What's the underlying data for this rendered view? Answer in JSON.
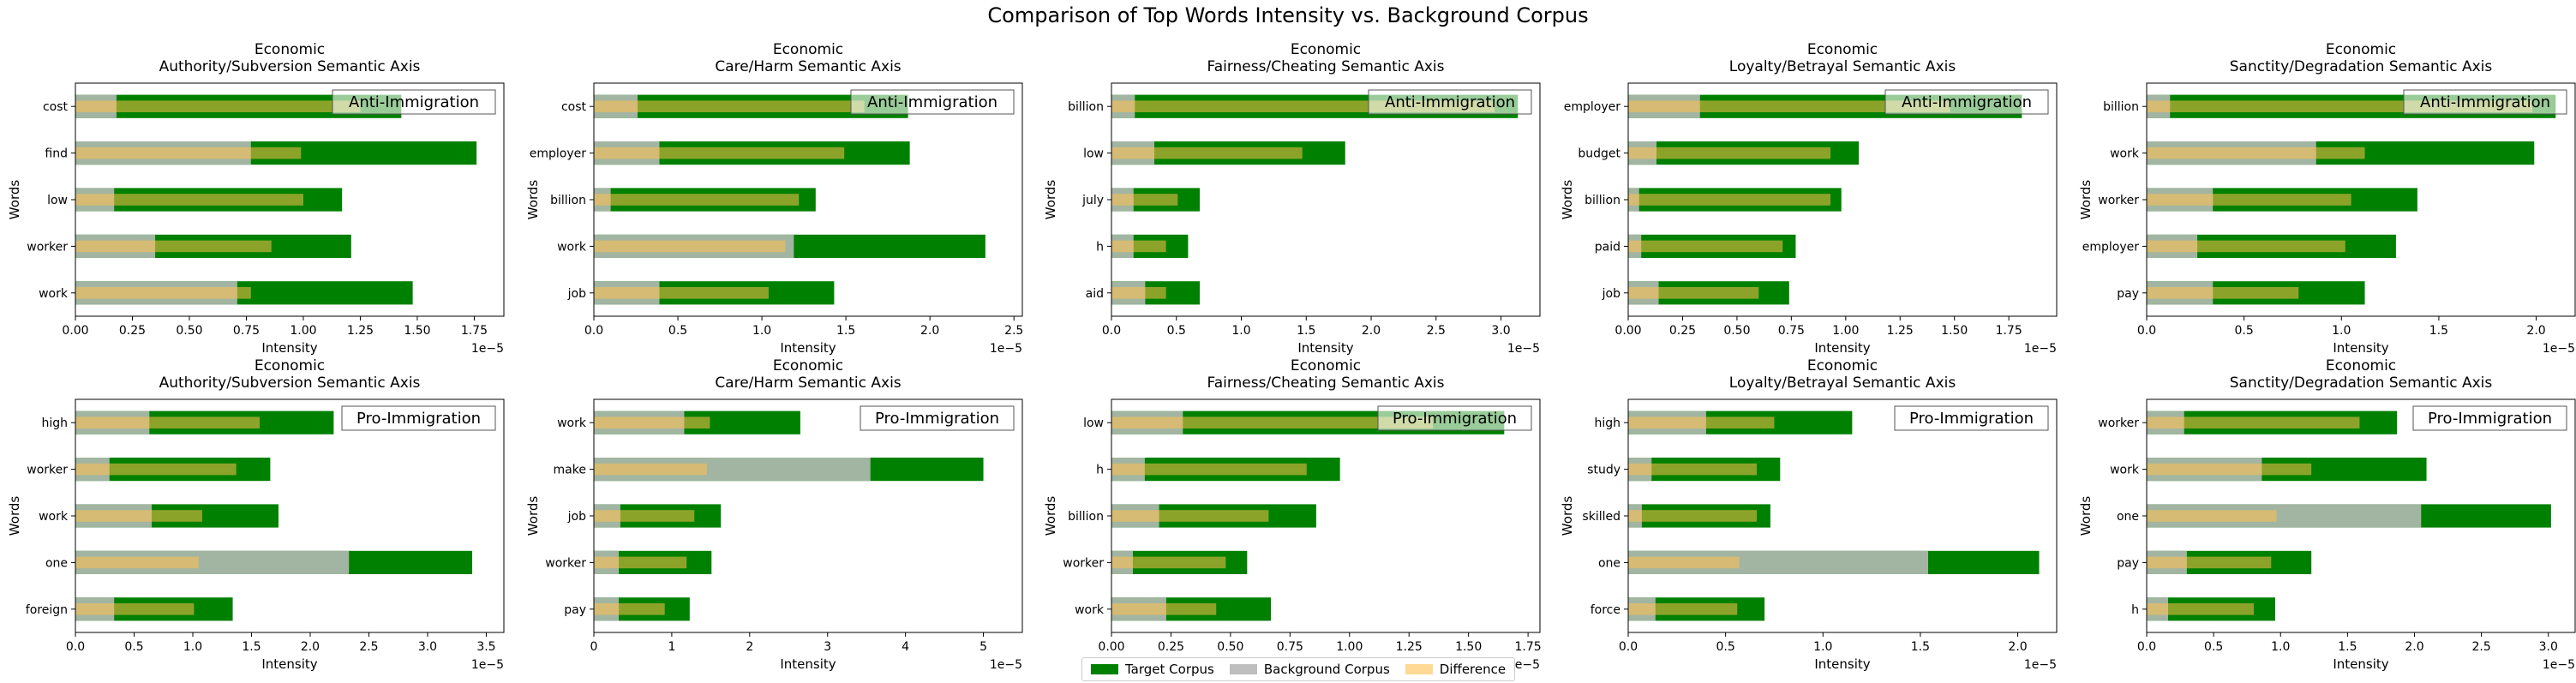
{
  "title": "Comparison of Top Words Intensity vs. Background Corpus",
  "colors": {
    "target": "#008000",
    "background": "#bebebe",
    "difference": "#ffc04d"
  },
  "legend": {
    "target": "Target Corpus",
    "background": "Background Corpus",
    "difference": "Difference"
  },
  "chart_data": [
    {
      "type": "bar",
      "orientation": "horizontal",
      "title": "Economic\nAuthority/Subversion Semantic Axis",
      "xlabel": "Intensity",
      "ylabel": "Words",
      "annotation": "Anti-Immigration",
      "multiplier": "1e−5",
      "xlim": [
        0,
        1.88
      ],
      "xticks": [
        0.0,
        0.25,
        0.5,
        0.75,
        1.0,
        1.25,
        1.5,
        1.75
      ],
      "categories": [
        "cost",
        "find",
        "low",
        "worker",
        "work"
      ],
      "series": [
        {
          "name": "Target Corpus",
          "values": [
            1.43,
            1.76,
            1.17,
            1.21,
            1.48
          ]
        },
        {
          "name": "Background Corpus",
          "values": [
            0.18,
            0.77,
            0.17,
            0.35,
            0.71
          ]
        },
        {
          "name": "Difference",
          "values": [
            1.25,
            0.99,
            1.0,
            0.86,
            0.77
          ]
        }
      ]
    },
    {
      "type": "bar",
      "orientation": "horizontal",
      "title": "Economic\nCare/Harm Semantic Axis",
      "xlabel": "Intensity",
      "ylabel": "Words",
      "annotation": "Anti-Immigration",
      "multiplier": "1e−5",
      "xlim": [
        0,
        2.55
      ],
      "xticks": [
        0.0,
        0.5,
        1.0,
        1.5,
        2.0,
        2.5
      ],
      "categories": [
        "cost",
        "employer",
        "billion",
        "work",
        "job"
      ],
      "series": [
        {
          "name": "Target Corpus",
          "values": [
            1.87,
            1.88,
            1.32,
            2.33,
            1.43
          ]
        },
        {
          "name": "Background Corpus",
          "values": [
            0.26,
            0.39,
            0.1,
            1.19,
            0.39
          ]
        },
        {
          "name": "Difference",
          "values": [
            1.61,
            1.49,
            1.22,
            1.14,
            1.04
          ]
        }
      ]
    },
    {
      "type": "bar",
      "orientation": "horizontal",
      "title": "Economic\nFairness/Cheating Semantic Axis",
      "xlabel": "Intensity",
      "ylabel": "Words",
      "annotation": "Anti-Immigration",
      "multiplier": "1e−5",
      "xlim": [
        0,
        3.3
      ],
      "xticks": [
        0.0,
        0.5,
        1.0,
        1.5,
        2.0,
        2.5,
        3.0
      ],
      "categories": [
        "billion",
        "low",
        "july",
        "h",
        "aid"
      ],
      "series": [
        {
          "name": "Target Corpus",
          "values": [
            3.13,
            1.8,
            0.68,
            0.59,
            0.68
          ]
        },
        {
          "name": "Background Corpus",
          "values": [
            0.18,
            0.33,
            0.17,
            0.17,
            0.26
          ]
        },
        {
          "name": "Difference",
          "values": [
            2.95,
            1.47,
            0.51,
            0.42,
            0.42
          ]
        }
      ]
    },
    {
      "type": "bar",
      "orientation": "horizontal",
      "title": "Economic\nLoyalty/Betrayal Semantic Axis",
      "xlabel": "Intensity",
      "ylabel": "Words",
      "annotation": "Anti-Immigration",
      "multiplier": "1e−5",
      "xlim": [
        0,
        1.97
      ],
      "xticks": [
        0.0,
        0.25,
        0.5,
        0.75,
        1.0,
        1.25,
        1.5,
        1.75
      ],
      "categories": [
        "employer",
        "budget",
        "billion",
        "paid",
        "job"
      ],
      "series": [
        {
          "name": "Target Corpus",
          "values": [
            1.81,
            1.06,
            0.98,
            0.77,
            0.74
          ]
        },
        {
          "name": "Background Corpus",
          "values": [
            0.33,
            0.13,
            0.05,
            0.06,
            0.14
          ]
        },
        {
          "name": "Difference",
          "values": [
            1.48,
            0.93,
            0.93,
            0.71,
            0.6
          ]
        }
      ]
    },
    {
      "type": "bar",
      "orientation": "horizontal",
      "title": "Economic\nSanctity/Degradation Semantic Axis",
      "xlabel": "Intensity",
      "ylabel": "Words",
      "annotation": "Anti-Immigration",
      "multiplier": "1e−5",
      "xlim": [
        0,
        2.2
      ],
      "xticks": [
        0.0,
        0.5,
        1.0,
        1.5,
        2.0
      ],
      "categories": [
        "billion",
        "work",
        "worker",
        "employer",
        "pay"
      ],
      "series": [
        {
          "name": "Target Corpus",
          "values": [
            2.1,
            1.99,
            1.39,
            1.28,
            1.12
          ]
        },
        {
          "name": "Background Corpus",
          "values": [
            0.12,
            0.87,
            0.34,
            0.26,
            0.34
          ]
        },
        {
          "name": "Difference",
          "values": [
            1.98,
            1.12,
            1.05,
            1.02,
            0.78
          ]
        }
      ]
    },
    {
      "type": "bar",
      "orientation": "horizontal",
      "title": "Economic\nAuthority/Subversion Semantic Axis",
      "xlabel": "Intensity",
      "ylabel": "Words",
      "annotation": "Pro-Immigration",
      "multiplier": "1e−5",
      "xlim": [
        0,
        3.65
      ],
      "xticks": [
        0.0,
        0.5,
        1.0,
        1.5,
        2.0,
        2.5,
        3.0,
        3.5
      ],
      "categories": [
        "high",
        "worker",
        "work",
        "one",
        "foreign"
      ],
      "series": [
        {
          "name": "Target Corpus",
          "values": [
            2.2,
            1.66,
            1.73,
            3.38,
            1.34
          ]
        },
        {
          "name": "Background Corpus",
          "values": [
            0.63,
            0.29,
            0.65,
            2.33,
            0.33
          ]
        },
        {
          "name": "Difference",
          "values": [
            1.57,
            1.37,
            1.08,
            1.05,
            1.01
          ]
        }
      ]
    },
    {
      "type": "bar",
      "orientation": "horizontal",
      "title": "Economic\nCare/Harm Semantic Axis",
      "xlabel": "Intensity",
      "ylabel": "Words",
      "annotation": "Pro-Immigration",
      "multiplier": "1e−5",
      "xlim": [
        0,
        5.5
      ],
      "xticks": [
        0,
        1,
        2,
        3,
        4,
        5
      ],
      "categories": [
        "work",
        "make",
        "job",
        "worker",
        "pay"
      ],
      "series": [
        {
          "name": "Target Corpus",
          "values": [
            2.65,
            5.0,
            1.63,
            1.51,
            1.23
          ]
        },
        {
          "name": "Background Corpus",
          "values": [
            1.16,
            3.55,
            0.34,
            0.32,
            0.32
          ]
        },
        {
          "name": "Difference",
          "values": [
            1.49,
            1.45,
            1.29,
            1.19,
            0.91
          ]
        }
      ]
    },
    {
      "type": "bar",
      "orientation": "horizontal",
      "title": "Economic\nFairness/Cheating Semantic Axis",
      "xlabel": "Intensity",
      "ylabel": "Words",
      "annotation": "Pro-Immigration",
      "multiplier": "1e−5",
      "xlim": [
        0,
        1.8
      ],
      "xticks": [
        0.0,
        0.25,
        0.5,
        0.75,
        1.0,
        1.25,
        1.5,
        1.75
      ],
      "categories": [
        "low",
        "h",
        "billion",
        "worker",
        "work"
      ],
      "series": [
        {
          "name": "Target Corpus",
          "values": [
            1.65,
            0.96,
            0.86,
            0.57,
            0.67
          ]
        },
        {
          "name": "Background Corpus",
          "values": [
            0.3,
            0.14,
            0.2,
            0.09,
            0.23
          ]
        },
        {
          "name": "Difference",
          "values": [
            1.35,
            0.82,
            0.66,
            0.48,
            0.44
          ]
        }
      ]
    },
    {
      "type": "bar",
      "orientation": "horizontal",
      "title": "Economic\nLoyalty/Betrayal Semantic Axis",
      "xlabel": "Intensity",
      "ylabel": "Words",
      "annotation": "Pro-Immigration",
      "multiplier": "1e−5",
      "xlim": [
        0,
        2.2
      ],
      "xticks": [
        0.0,
        0.5,
        1.0,
        1.5,
        2.0
      ],
      "categories": [
        "high",
        "study",
        "skilled",
        "one",
        "force"
      ],
      "series": [
        {
          "name": "Target Corpus",
          "values": [
            1.15,
            0.78,
            0.73,
            2.11,
            0.7
          ]
        },
        {
          "name": "Background Corpus",
          "values": [
            0.4,
            0.12,
            0.07,
            1.54,
            0.14
          ]
        },
        {
          "name": "Difference",
          "values": [
            0.75,
            0.66,
            0.66,
            0.57,
            0.56
          ]
        }
      ]
    },
    {
      "type": "bar",
      "orientation": "horizontal",
      "title": "Economic\nSanctity/Degradation Semantic Axis",
      "xlabel": "Intensity",
      "ylabel": "Words",
      "annotation": "Pro-Immigration",
      "multiplier": "1e−5",
      "xlim": [
        0,
        3.2
      ],
      "xticks": [
        0.0,
        0.5,
        1.0,
        1.5,
        2.0,
        2.5,
        3.0
      ],
      "categories": [
        "worker",
        "work",
        "one",
        "pay",
        "h"
      ],
      "series": [
        {
          "name": "Target Corpus",
          "values": [
            1.87,
            2.09,
            3.02,
            1.23,
            0.96
          ]
        },
        {
          "name": "Background Corpus",
          "values": [
            0.28,
            0.86,
            2.05,
            0.3,
            0.16
          ]
        },
        {
          "name": "Difference",
          "values": [
            1.59,
            1.23,
            0.97,
            0.93,
            0.8
          ]
        }
      ]
    }
  ]
}
